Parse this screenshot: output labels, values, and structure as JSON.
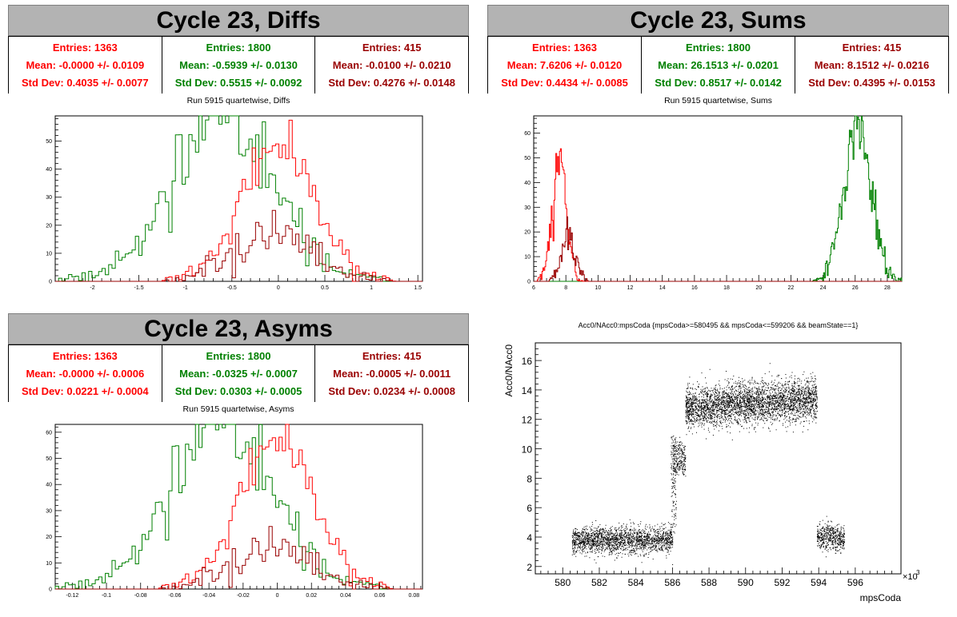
{
  "colors": {
    "red": "#ff0000",
    "green": "#008000",
    "darkred": "#990000",
    "title_bg": "#b3b3b3"
  },
  "panels": {
    "diffs": {
      "title": "Cycle 23, Diffs",
      "subtitle": "Run 5915 quartetwise, Diffs",
      "stats": [
        {
          "entries": "Entries: 1363",
          "mean": "Mean: -0.0000 +/- 0.0109",
          "std": "Std Dev: 0.4035 +/- 0.0077"
        },
        {
          "entries": "Entries: 1800",
          "mean": "Mean: -0.5939 +/- 0.0130",
          "std": "Std Dev: 0.5515 +/- 0.0092"
        },
        {
          "entries": "Entries: 415",
          "mean": "Mean: -0.0100 +/- 0.0210",
          "std": "Std Dev: 0.4276 +/- 0.0148"
        }
      ]
    },
    "sums": {
      "title": "Cycle 23, Sums",
      "subtitle": "Run 5915 quartetwise, Sums",
      "stats": [
        {
          "entries": "Entries: 1363",
          "mean": "Mean: 7.6206 +/- 0.0120",
          "std": "Std Dev: 0.4434 +/- 0.0085"
        },
        {
          "entries": "Entries: 1800",
          "mean": "Mean: 26.1513 +/- 0.0201",
          "std": "Std Dev: 0.8517 +/- 0.0142"
        },
        {
          "entries": "Entries: 415",
          "mean": "Mean: 8.1512 +/- 0.0216",
          "std": "Std Dev: 0.4395 +/- 0.0153"
        }
      ]
    },
    "asyms": {
      "title": "Cycle 23, Asyms",
      "subtitle": "Run 5915 quartetwise, Asyms",
      "stats": [
        {
          "entries": "Entries: 1363",
          "mean": "Mean: -0.0000 +/- 0.0006",
          "std": "Std Dev: 0.0221 +/- 0.0004"
        },
        {
          "entries": "Entries: 1800",
          "mean": "Mean: -0.0325 +/- 0.0007",
          "std": "Std Dev: 0.0303 +/- 0.0005"
        },
        {
          "entries": "Entries: 415",
          "mean": "Mean: -0.0005 +/- 0.0011",
          "std": "Std Dev: 0.0234 +/- 0.0008"
        }
      ]
    },
    "scatter": {
      "title": "Acc0/NAcc0:mpsCoda {mpsCoda>=580495 && mpsCoda<=599206 && beamState==1}",
      "ylabel": "Acc0/NAcc0",
      "xlabel": "mpsCoda",
      "exponent": "×10",
      "exponent_power": "3"
    }
  },
  "chart_data": [
    {
      "type": "histogram",
      "name": "diffs",
      "xlim": [
        -2.4,
        1.55
      ],
      "ylim": [
        0,
        59
      ],
      "xticks": [
        -2,
        -1.5,
        -1,
        -0.5,
        0,
        0.5,
        1,
        1.5
      ],
      "yticks": [
        0,
        10,
        20,
        30,
        40,
        50
      ],
      "series": [
        {
          "color": "green",
          "mean": -0.594,
          "std": 0.55,
          "entries": 1800,
          "peak": 56
        },
        {
          "color": "red",
          "mean": 0.0,
          "std": 0.4,
          "entries": 1363,
          "peak": 48
        },
        {
          "color": "darkred",
          "mean": -0.01,
          "std": 0.43,
          "entries": 415,
          "peak": 17
        }
      ]
    },
    {
      "type": "histogram",
      "name": "sums",
      "xlim": [
        6,
        28.9
      ],
      "ylim": [
        0,
        67
      ],
      "xticks": [
        6,
        8,
        10,
        12,
        14,
        16,
        18,
        20,
        22,
        24,
        26,
        28
      ],
      "yticks": [
        0,
        10,
        20,
        30,
        40,
        50,
        60
      ],
      "series": [
        {
          "color": "green",
          "mean": 26.15,
          "std": 0.85,
          "entries": 1800,
          "peak": 65
        },
        {
          "color": "red",
          "mean": 7.62,
          "std": 0.44,
          "entries": 1363,
          "peak": 48
        },
        {
          "color": "darkred",
          "mean": 8.15,
          "std": 0.44,
          "entries": 415,
          "peak": 18
        }
      ]
    },
    {
      "type": "histogram",
      "name": "asyms",
      "xlim": [
        -0.13,
        0.085
      ],
      "ylim": [
        0,
        63
      ],
      "xticks": [
        -0.12,
        -0.1,
        -0.08,
        -0.06,
        -0.04,
        -0.02,
        0,
        0.02,
        0.04,
        0.06,
        0.08
      ],
      "yticks": [
        0,
        10,
        20,
        30,
        40,
        50,
        60
      ],
      "series": [
        {
          "color": "green",
          "mean": -0.0325,
          "std": 0.03,
          "entries": 1800,
          "peak": 61
        },
        {
          "color": "red",
          "mean": 0.0,
          "std": 0.022,
          "entries": 1363,
          "peak": 57
        },
        {
          "color": "darkred",
          "mean": -0.0005,
          "std": 0.0234,
          "entries": 415,
          "peak": 16
        }
      ]
    },
    {
      "type": "scatter",
      "name": "acc0_vs_mpsCoda",
      "xlim": [
        578.5,
        598.5
      ],
      "ylim": [
        1.5,
        17.2
      ],
      "xticks": [
        580,
        582,
        584,
        586,
        588,
        590,
        592,
        594,
        596
      ],
      "yticks": [
        2,
        4,
        6,
        8,
        10,
        12,
        14,
        16
      ],
      "clusters": [
        {
          "x_range": [
            580.5,
            586.0
          ],
          "y_center": 3.8,
          "y_spread": 0.45
        },
        {
          "x_range": [
            586.0,
            586.7
          ],
          "y_center": 9.4,
          "y_spread": 0.5
        },
        {
          "x_range": [
            586.7,
            593.9
          ],
          "y_center_start": 12.8,
          "y_center_end": 13.4,
          "y_spread": 0.7
        },
        {
          "x_range": [
            593.9,
            595.4
          ],
          "y_center": 4.0,
          "y_spread": 0.45
        }
      ]
    }
  ]
}
